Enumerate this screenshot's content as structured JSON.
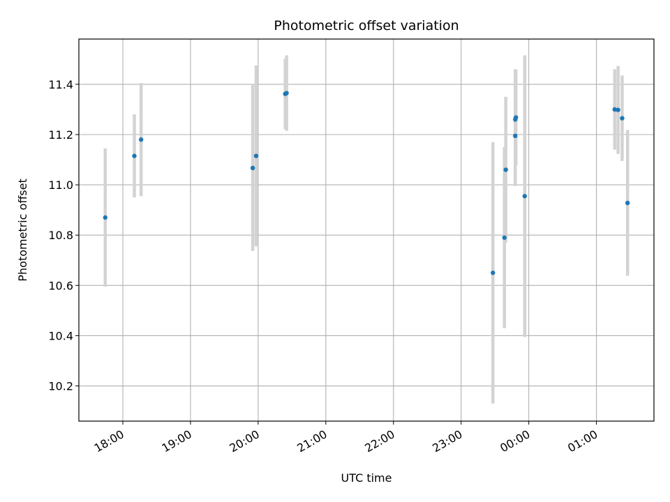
{
  "chart_data": {
    "type": "scatter",
    "title": "Photometric offset variation",
    "xlabel": "UTC time",
    "ylabel": "Photometric offset",
    "grid": true,
    "x_ticks": [
      {
        "label": "18:00",
        "hours": 18.0
      },
      {
        "label": "19:00",
        "hours": 19.0
      },
      {
        "label": "20:00",
        "hours": 20.0
      },
      {
        "label": "21:00",
        "hours": 21.0
      },
      {
        "label": "22:00",
        "hours": 22.0
      },
      {
        "label": "23:00",
        "hours": 23.0
      },
      {
        "label": "00:00",
        "hours": 24.0
      },
      {
        "label": "01:00",
        "hours": 25.0
      }
    ],
    "y_ticks": [
      10.2,
      10.4,
      10.6,
      10.8,
      11.0,
      11.2,
      11.4
    ],
    "xlim_hours": [
      17.35,
      25.85
    ],
    "ylim": [
      10.06,
      11.58
    ],
    "colors": {
      "point": "#1f77b4",
      "errorbar": "#d3d3d3",
      "grid": "#b0b0b0"
    },
    "points": [
      {
        "t": "17:45",
        "hours": 17.74,
        "y": 10.87,
        "err": 0.275
      },
      {
        "t": "18:10",
        "hours": 18.17,
        "y": 11.115,
        "err": 0.165
      },
      {
        "t": "18:16",
        "hours": 18.27,
        "y": 11.18,
        "err": 0.225
      },
      {
        "t": "19:55",
        "hours": 19.92,
        "y": 11.067,
        "err": 0.33
      },
      {
        "t": "19:58",
        "hours": 19.97,
        "y": 11.115,
        "err": 0.36
      },
      {
        "t": "20:24",
        "hours": 20.4,
        "y": 11.362,
        "err": 0.14
      },
      {
        "t": "20:25",
        "hours": 20.42,
        "y": 11.365,
        "err": 0.15
      },
      {
        "t": "23:28",
        "hours": 23.47,
        "y": 10.65,
        "err": 0.52
      },
      {
        "t": "23:38",
        "hours": 23.64,
        "y": 10.79,
        "err": 0.36
      },
      {
        "t": "23:40",
        "hours": 23.66,
        "y": 11.06,
        "err": 0.29
      },
      {
        "t": "23:48",
        "hours": 23.8,
        "y": 11.195,
        "err": 0.2
      },
      {
        "t": "23:48",
        "hours": 23.8,
        "y": 11.26,
        "err": 0.2
      },
      {
        "t": "23:49",
        "hours": 23.81,
        "y": 11.268,
        "err": 0.19
      },
      {
        "t": "23:56",
        "hours": 23.94,
        "y": 10.955,
        "err": 0.56
      },
      {
        "t": "01:16",
        "hours": 25.27,
        "y": 11.3,
        "err": 0.16
      },
      {
        "t": "01:19",
        "hours": 25.32,
        "y": 11.298,
        "err": 0.175
      },
      {
        "t": "01:22",
        "hours": 25.38,
        "y": 11.265,
        "err": 0.17
      },
      {
        "t": "01:27",
        "hours": 25.46,
        "y": 10.928,
        "err": 0.29
      }
    ]
  }
}
